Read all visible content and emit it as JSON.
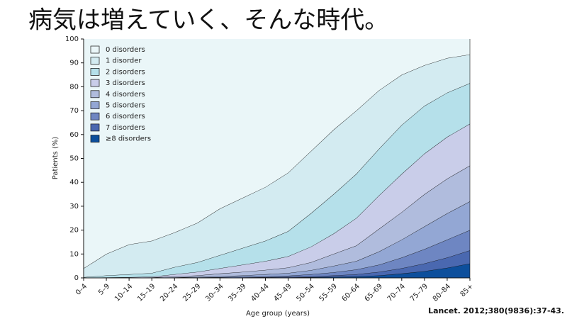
{
  "chart_data": {
    "type": "stacked_area",
    "title": "病気は増えていく、そんな時代。",
    "x_label": "Age group (years)",
    "y_label": "Patients (%)",
    "source": "Lancet. 2012;380(9836):37-43.",
    "categories": [
      "0–4",
      "5–9",
      "10–14",
      "15–19",
      "20–24",
      "25–29",
      "30–34",
      "35–39",
      "40–44",
      "45–49",
      "50–54",
      "55–59",
      "60–64",
      "65–69",
      "70–74",
      "75–79",
      "80–84",
      "85+"
    ],
    "ylim": [
      0,
      100
    ],
    "yticks": [
      0,
      10,
      20,
      30,
      40,
      50,
      60,
      70,
      80,
      90,
      100
    ],
    "legend": "upper left",
    "series": [
      {
        "name": "0 disorders",
        "color": "#eaf6f8",
        "values": [
          96,
          90,
          86,
          84.5,
          81,
          77,
          71,
          66.5,
          62,
          56,
          47,
          38,
          30,
          21.5,
          15,
          11,
          8,
          6.5
        ]
      },
      {
        "name": "1 disorder",
        "color": "#d3ebf1",
        "values": [
          3.7,
          9,
          12.5,
          13.5,
          14.5,
          16.5,
          19.5,
          21,
          22.5,
          24.5,
          26,
          27,
          26.5,
          24.5,
          21,
          17,
          14.5,
          12
        ]
      },
      {
        "name": "2 disorders",
        "color": "#b5e0ea",
        "values": [
          0.3,
          0.8,
          1.2,
          1.5,
          3,
          4,
          5.5,
          7,
          8.5,
          10.5,
          14,
          16.5,
          18.5,
          19.5,
          20.5,
          20,
          18.5,
          17
        ]
      },
      {
        "name": "3 disorders",
        "color": "#c9cde9",
        "values": [
          0,
          0.2,
          0.2,
          0.3,
          0.9,
          1.5,
          2.2,
          3,
          3.7,
          4.7,
          6.5,
          8.5,
          11.5,
          14,
          16,
          17,
          17.5,
          17.5
        ]
      },
      {
        "name": "4 disorders",
        "color": "#b0bcdd",
        "values": [
          0,
          0,
          0.1,
          0.1,
          0.4,
          0.6,
          1.1,
          1.5,
          1.8,
          2.3,
          3.3,
          5,
          6.5,
          9.5,
          11.5,
          13.5,
          14.5,
          15
        ]
      },
      {
        "name": "5 disorders",
        "color": "#93a7d4",
        "values": [
          0,
          0,
          0,
          0.1,
          0.1,
          0.2,
          0.4,
          0.5,
          0.9,
          1.1,
          1.7,
          2.7,
          3.5,
          5.5,
          7.5,
          9.5,
          11,
          12
        ]
      },
      {
        "name": "6 disorders",
        "color": "#6e86c2",
        "values": [
          0,
          0,
          0,
          0,
          0.1,
          0.1,
          0.2,
          0.3,
          0.3,
          0.5,
          0.9,
          1.3,
          2,
          3,
          4.5,
          6,
          7.5,
          8.5
        ]
      },
      {
        "name": "7 disorders",
        "color": "#4a68b0",
        "values": [
          0,
          0,
          0,
          0,
          0,
          0.1,
          0.1,
          0.1,
          0.2,
          0.2,
          0.3,
          0.6,
          0.9,
          1.5,
          2.2,
          3.2,
          4.3,
          5.5
        ]
      },
      {
        "name": "≥8 disorders",
        "color": "#0d4f9c",
        "values": [
          0,
          0,
          0,
          0,
          0,
          0,
          0,
          0.1,
          0.1,
          0.2,
          0.3,
          0.4,
          0.6,
          1,
          1.8,
          2.8,
          4.2,
          6
        ]
      }
    ]
  }
}
